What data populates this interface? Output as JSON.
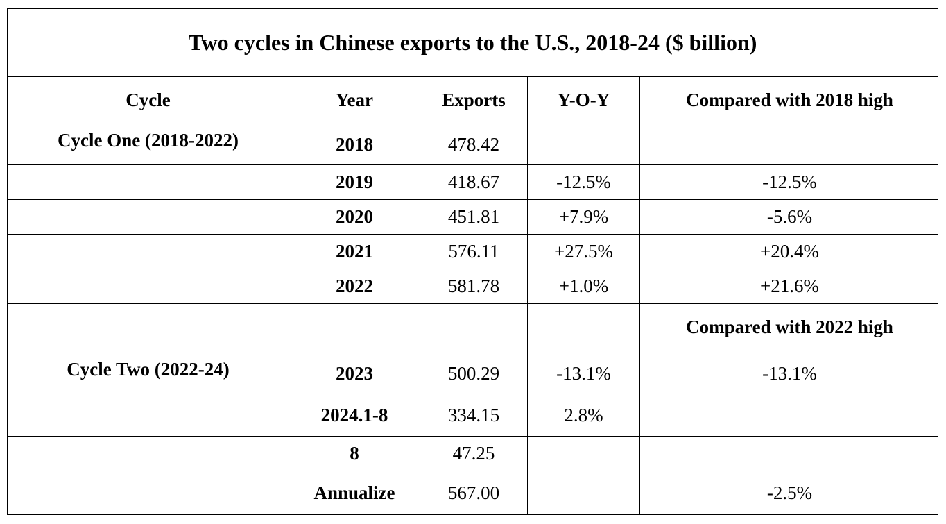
{
  "title": "Two cycles in Chinese exports to the U.S., 2018-24 ($ billion)",
  "headers": {
    "cycle": "Cycle",
    "year": "Year",
    "exports": "Exports",
    "yoy": "Y-O-Y",
    "compared": "Compared with 2018 high"
  },
  "rows": [
    {
      "cycle": "Cycle One (2018-2022)",
      "year": "2018",
      "exports": "478.42",
      "yoy": "",
      "compared": ""
    },
    {
      "cycle": "",
      "year": "2019",
      "exports": "418.67",
      "yoy": "-12.5%",
      "compared": "-12.5%"
    },
    {
      "cycle": "",
      "year": "2020",
      "exports": "451.81",
      "yoy": "+7.9%",
      "compared": "-5.6%"
    },
    {
      "cycle": "",
      "year": "2021",
      "exports": "576.11",
      "yoy": "+27.5%",
      "compared": "+20.4%"
    },
    {
      "cycle": "",
      "year": "2022",
      "exports": "581.78",
      "yoy": "+1.0%",
      "compared": "+21.6%"
    },
    {
      "cycle": "",
      "year": "",
      "exports": "",
      "yoy": "",
      "compared": "Compared with 2022 high"
    },
    {
      "cycle": "Cycle Two (2022-24)",
      "year": "2023",
      "exports": "500.29",
      "yoy": "-13.1%",
      "compared": "-13.1%"
    },
    {
      "cycle": "",
      "year": "2024.1-8",
      "exports": "334.15",
      "yoy": "2.8%",
      "compared": ""
    },
    {
      "cycle": "",
      "year": "8",
      "exports": "47.25",
      "yoy": "",
      "compared": ""
    },
    {
      "cycle": "",
      "year": "Annualize",
      "exports": "567.00",
      "yoy": "",
      "compared": "-2.5%"
    }
  ]
}
